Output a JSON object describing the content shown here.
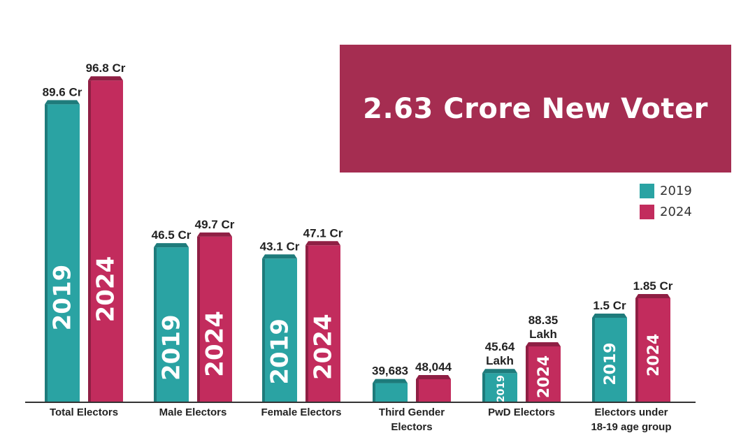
{
  "banner": {
    "text": "2.63 Crore New Voter"
  },
  "colors": {
    "s2019": "#2aa3a3",
    "s2024": "#c22c5d"
  },
  "legend": [
    {
      "label": "2019",
      "color": "#2aa3a3"
    },
    {
      "label": "2024",
      "color": "#c22c5d"
    }
  ],
  "chart_data": {
    "type": "bar",
    "categories": [
      "Total Electors",
      "Male Electors",
      "Female Electors",
      "Third Gender Electors",
      "PwD Electors",
      "Electors under 18-19 age group"
    ],
    "category_label_lines": [
      [
        "Total Electors"
      ],
      [
        "Male Electors"
      ],
      [
        "Female Electors"
      ],
      [
        "Third Gender",
        "Electors"
      ],
      [
        "PwD Electors"
      ],
      [
        "Electors under",
        "18-19 age group"
      ]
    ],
    "series": [
      {
        "name": "2019",
        "values": [
          89.6,
          46.5,
          43.1,
          39683,
          45.64,
          1.5
        ],
        "value_labels": [
          [
            "89.6 Cr"
          ],
          [
            "46.5 Cr"
          ],
          [
            "43.1 Cr"
          ],
          [
            "39,683"
          ],
          [
            "45.64",
            "Lakh"
          ],
          [
            "1.5 Cr"
          ]
        ]
      },
      {
        "name": "2024",
        "values": [
          96.8,
          49.7,
          47.1,
          48044,
          88.35,
          1.85
        ],
        "value_labels": [
          [
            "96.8 Cr"
          ],
          [
            "49.7 Cr"
          ],
          [
            "47.1 Cr"
          ],
          [
            "48,044"
          ],
          [
            "88.35",
            "Lakh"
          ],
          [
            "1.85 Cr"
          ]
        ]
      }
    ],
    "units": [
      "Cr",
      "Cr",
      "Cr",
      "count",
      "Lakh",
      "Cr"
    ],
    "legend_position": "right",
    "grid": false
  }
}
